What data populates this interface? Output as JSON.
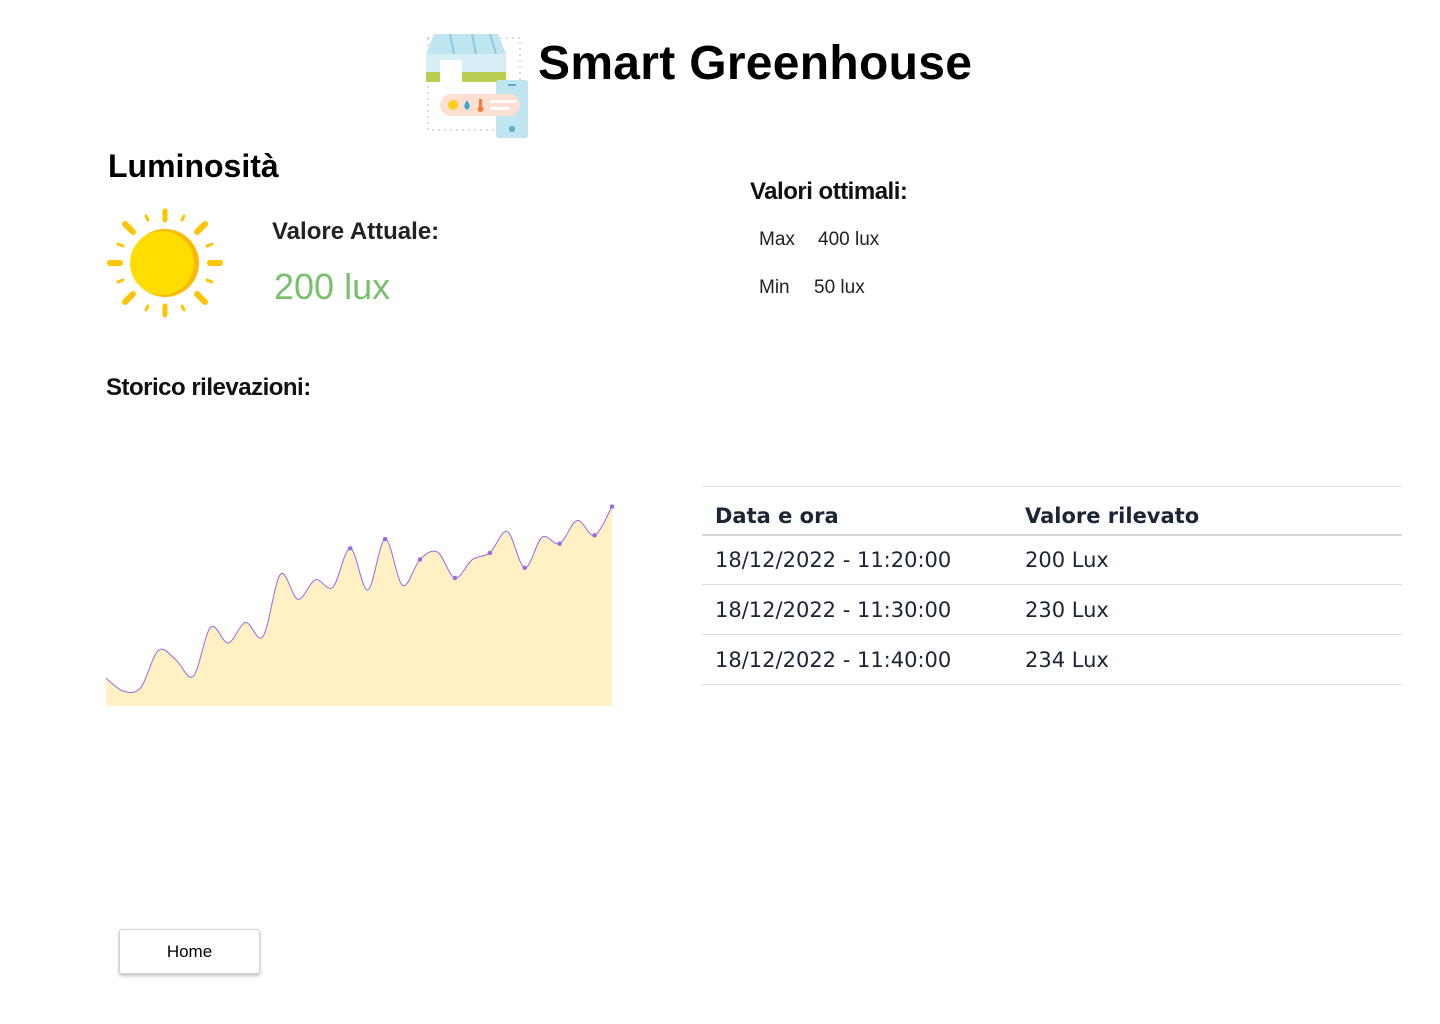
{
  "header": {
    "title": "Smart Greenhouse",
    "logo_icon": "greenhouse-icon"
  },
  "sensor": {
    "title": "Luminosità",
    "icon": "sun-icon",
    "current_label": "Valore Attuale:",
    "current_value": "200 lux",
    "current_color": "#79bf6e"
  },
  "optimal": {
    "title": "Valori ottimali:",
    "max_label": "Max",
    "max_value": "400 lux",
    "min_label": "Min",
    "min_value": "50 lux"
  },
  "history": {
    "title": "Storico rilevazioni:"
  },
  "chart_data": {
    "type": "area",
    "title": "",
    "xlabel": "",
    "ylabel": "",
    "grid": false,
    "legend": "none",
    "fill_color": "#fff1c4",
    "line_color": "#9a66e6",
    "ylim": [
      0,
      235
    ],
    "values": [
      30,
      16,
      20,
      60,
      50,
      32,
      85,
      68,
      90,
      75,
      142,
      115,
      136,
      128,
      170,
      125,
      180,
      130,
      158,
      166,
      138,
      158,
      165,
      188,
      149,
      182,
      175,
      200,
      184,
      215
    ]
  },
  "table": {
    "headers": [
      "Data e ora",
      "Valore rilevato"
    ],
    "rows": [
      [
        "18/12/2022 - 11:20:00",
        "200 Lux"
      ],
      [
        "18/12/2022 - 11:30:00",
        "230 Lux"
      ],
      [
        "18/12/2022 - 11:40:00",
        "234 Lux"
      ]
    ]
  },
  "nav": {
    "home_label": "Home"
  }
}
